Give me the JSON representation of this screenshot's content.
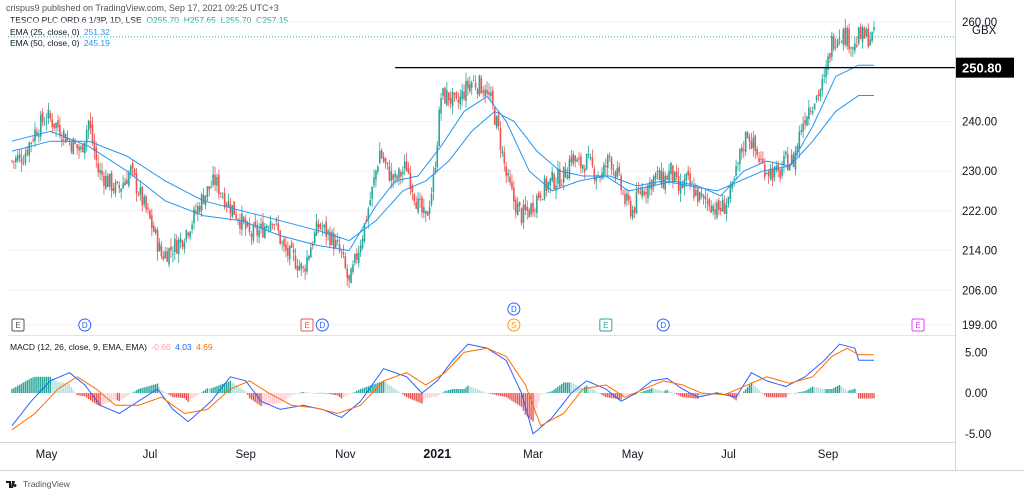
{
  "header": {
    "published": "crispus9 published on TradingView.com, Sep 17, 2021 09:25 UTC+3"
  },
  "legend": {
    "symbol": "TESCO PLC ORD 6 1/3P, 1D, LSE",
    "ohlc": {
      "O": "255.70",
      "H": "257.65",
      "L": "255.70",
      "C": "257.15"
    },
    "ema25": {
      "label": "EMA (25, close, 0)",
      "value": "251.32"
    },
    "ema50": {
      "label": "EMA (50, close, 0)",
      "value": "245.19"
    },
    "macd": {
      "label": "MACD (12, 26, close, 9, EMA, EMA)",
      "hist": "-0.66",
      "macd": "4.03",
      "signal": "4.69"
    }
  },
  "footer": {
    "brand": "TradingView"
  },
  "colors": {
    "up": "#26a69a",
    "down": "#ef5350",
    "ema": "#2196f3",
    "macd_line": "#2962ff",
    "signal_line": "#ff6d00",
    "hist_up": "#26a69a",
    "hist_down": "#ef5350",
    "grid": "#f0f3fa"
  },
  "chart_data": [
    {
      "type": "candlestick",
      "currency": "GBX",
      "price_axis_ticks": [
        "260.00",
        "240.00",
        "230.00",
        "222.00",
        "214.00",
        "206.00",
        "199.00"
      ],
      "current_price_label": "250.80",
      "horizontal_line_value": 250.8,
      "x_tick_labels": [
        "May",
        "Jul",
        "Sep",
        "Nov",
        "2021",
        "Mar",
        "May",
        "Jul",
        "Sep"
      ],
      "ylim": [
        197,
        262
      ],
      "event_markers": [
        {
          "type": "E",
          "label": "E"
        },
        {
          "type": "D",
          "label": "D"
        },
        {
          "type": "E",
          "label": "E"
        },
        {
          "type": "D",
          "label": "D"
        },
        {
          "type": "D",
          "label": "D"
        },
        {
          "type": "S",
          "label": "S"
        },
        {
          "type": "E",
          "label": "E"
        },
        {
          "type": "D",
          "label": "D"
        },
        {
          "type": "E",
          "label": "E"
        }
      ],
      "close_path": [
        [
          0,
          232
        ],
        [
          6,
          233
        ],
        [
          12,
          238
        ],
        [
          18,
          241
        ],
        [
          24,
          239
        ],
        [
          30,
          236
        ],
        [
          36,
          234
        ],
        [
          40,
          240
        ],
        [
          45,
          230
        ],
        [
          50,
          228
        ],
        [
          55,
          226
        ],
        [
          62,
          230
        ],
        [
          68,
          224
        ],
        [
          74,
          218
        ],
        [
          78,
          213
        ],
        [
          82,
          214
        ],
        [
          88,
          216
        ],
        [
          94,
          220
        ],
        [
          100,
          225
        ],
        [
          106,
          228
        ],
        [
          112,
          224
        ],
        [
          118,
          221
        ],
        [
          124,
          217
        ],
        [
          130,
          218
        ],
        [
          136,
          221
        ],
        [
          142,
          214
        ],
        [
          148,
          212
        ],
        [
          152,
          210
        ],
        [
          156,
          215
        ],
        [
          160,
          219
        ],
        [
          166,
          217
        ],
        [
          172,
          213
        ],
        [
          176,
          207
        ],
        [
          180,
          213
        ],
        [
          184,
          219
        ],
        [
          188,
          226
        ],
        [
          192,
          234
        ],
        [
          196,
          230
        ],
        [
          200,
          228
        ],
        [
          206,
          231
        ],
        [
          212,
          223
        ],
        [
          216,
          220
        ],
        [
          220,
          228
        ],
        [
          224,
          245
        ],
        [
          228,
          245
        ],
        [
          232,
          243
        ],
        [
          236,
          246
        ],
        [
          240,
          248
        ],
        [
          246,
          247
        ],
        [
          250,
          244
        ],
        [
          254,
          238
        ],
        [
          258,
          229
        ],
        [
          262,
          224
        ],
        [
          266,
          221
        ],
        [
          270,
          222
        ],
        [
          276,
          226
        ],
        [
          282,
          228
        ],
        [
          288,
          229
        ],
        [
          292,
          233
        ],
        [
          296,
          231
        ],
        [
          300,
          232
        ],
        [
          304,
          230
        ],
        [
          308,
          229
        ],
        [
          312,
          233
        ],
        [
          316,
          229
        ],
        [
          320,
          224
        ],
        [
          324,
          222
        ],
        [
          328,
          226
        ],
        [
          332,
          227
        ],
        [
          336,
          229
        ],
        [
          340,
          228
        ],
        [
          344,
          230
        ],
        [
          348,
          226
        ],
        [
          352,
          228
        ],
        [
          356,
          226
        ],
        [
          360,
          224
        ],
        [
          364,
          224
        ],
        [
          368,
          222
        ],
        [
          372,
          223
        ],
        [
          376,
          226
        ],
        [
          380,
          233
        ],
        [
          384,
          238
        ],
        [
          388,
          234
        ],
        [
          392,
          231
        ],
        [
          396,
          230
        ],
        [
          400,
          229
        ],
        [
          404,
          232
        ],
        [
          408,
          232
        ],
        [
          412,
          239
        ],
        [
          416,
          243
        ],
        [
          420,
          245
        ],
        [
          424,
          248
        ],
        [
          428,
          256
        ],
        [
          432,
          258
        ],
        [
          436,
          257
        ],
        [
          440,
          255
        ],
        [
          442,
          257
        ]
      ],
      "ema25_path": [
        [
          0,
          236
        ],
        [
          20,
          238
        ],
        [
          40,
          235
        ],
        [
          60,
          230
        ],
        [
          80,
          224
        ],
        [
          100,
          221
        ],
        [
          120,
          220
        ],
        [
          140,
          217
        ],
        [
          160,
          215
        ],
        [
          176,
          214
        ],
        [
          190,
          223
        ],
        [
          200,
          228
        ],
        [
          212,
          229
        ],
        [
          224,
          235
        ],
        [
          236,
          242
        ],
        [
          248,
          245
        ],
        [
          258,
          240
        ],
        [
          270,
          230
        ],
        [
          282,
          226
        ],
        [
          296,
          228
        ],
        [
          310,
          229
        ],
        [
          322,
          226
        ],
        [
          334,
          227
        ],
        [
          346,
          228
        ],
        [
          358,
          227
        ],
        [
          370,
          225
        ],
        [
          382,
          230
        ],
        [
          394,
          232
        ],
        [
          406,
          231
        ],
        [
          418,
          239
        ],
        [
          430,
          249
        ],
        [
          442,
          251.3
        ]
      ],
      "ema50_path": [
        [
          0,
          234
        ],
        [
          20,
          236
        ],
        [
          40,
          236
        ],
        [
          60,
          233
        ],
        [
          80,
          228
        ],
        [
          100,
          224
        ],
        [
          120,
          222
        ],
        [
          140,
          220
        ],
        [
          160,
          218
        ],
        [
          176,
          216
        ],
        [
          190,
          220
        ],
        [
          204,
          226
        ],
        [
          216,
          228
        ],
        [
          228,
          232
        ],
        [
          240,
          238
        ],
        [
          252,
          242
        ],
        [
          262,
          240
        ],
        [
          274,
          234
        ],
        [
          286,
          230
        ],
        [
          298,
          229
        ],
        [
          312,
          229
        ],
        [
          326,
          227
        ],
        [
          340,
          228
        ],
        [
          354,
          227
        ],
        [
          368,
          226
        ],
        [
          380,
          228
        ],
        [
          392,
          230
        ],
        [
          406,
          231
        ],
        [
          418,
          236
        ],
        [
          430,
          242
        ],
        [
          442,
          245.2
        ]
      ]
    },
    {
      "type": "macd",
      "y_axis_ticks": [
        "5.00",
        "0.00",
        "-5.00"
      ],
      "ylim": [
        -6,
        7
      ],
      "macd_path": [
        [
          0,
          -4
        ],
        [
          10,
          -1
        ],
        [
          20,
          1.5
        ],
        [
          30,
          2.5
        ],
        [
          38,
          1
        ],
        [
          46,
          -1.5
        ],
        [
          56,
          -2.5
        ],
        [
          66,
          -1
        ],
        [
          76,
          0.5
        ],
        [
          84,
          -2
        ],
        [
          92,
          -3.5
        ],
        [
          104,
          -1
        ],
        [
          114,
          2
        ],
        [
          122,
          1.5
        ],
        [
          130,
          -1
        ],
        [
          140,
          -2
        ],
        [
          152,
          -1.5
        ],
        [
          162,
          -2
        ],
        [
          172,
          -3
        ],
        [
          182,
          -1
        ],
        [
          194,
          3
        ],
        [
          206,
          2
        ],
        [
          214,
          0
        ],
        [
          222,
          1.5
        ],
        [
          230,
          4
        ],
        [
          238,
          6
        ],
        [
          248,
          5.5
        ],
        [
          258,
          4
        ],
        [
          266,
          0
        ],
        [
          272,
          -5
        ],
        [
          282,
          -3
        ],
        [
          292,
          0
        ],
        [
          300,
          1.5
        ],
        [
          310,
          0.5
        ],
        [
          318,
          -1
        ],
        [
          326,
          0
        ],
        [
          334,
          1.5
        ],
        [
          342,
          1.8
        ],
        [
          350,
          0.5
        ],
        [
          358,
          -0.5
        ],
        [
          368,
          0
        ],
        [
          378,
          -0.5
        ],
        [
          386,
          2.5
        ],
        [
          394,
          1.5
        ],
        [
          404,
          0.8
        ],
        [
          414,
          2
        ],
        [
          424,
          4
        ],
        [
          432,
          6
        ],
        [
          440,
          5.5
        ],
        [
          442,
          4.03
        ]
      ],
      "signal_path": [
        [
          0,
          -4.5
        ],
        [
          12,
          -2.5
        ],
        [
          24,
          0.5
        ],
        [
          34,
          2
        ],
        [
          44,
          0.5
        ],
        [
          54,
          -1.5
        ],
        [
          66,
          -1.5
        ],
        [
          78,
          -0.5
        ],
        [
          90,
          -2.5
        ],
        [
          102,
          -2
        ],
        [
          114,
          0.5
        ],
        [
          124,
          1.5
        ],
        [
          134,
          0
        ],
        [
          146,
          -1.5
        ],
        [
          158,
          -1.8
        ],
        [
          170,
          -2.5
        ],
        [
          182,
          -1.5
        ],
        [
          194,
          1.5
        ],
        [
          206,
          2.5
        ],
        [
          216,
          1
        ],
        [
          226,
          2.5
        ],
        [
          236,
          5
        ],
        [
          248,
          5.5
        ],
        [
          258,
          4.5
        ],
        [
          268,
          1
        ],
        [
          276,
          -4
        ],
        [
          288,
          -2.5
        ],
        [
          298,
          0.5
        ],
        [
          310,
          1
        ],
        [
          320,
          -0.5
        ],
        [
          330,
          0.5
        ],
        [
          340,
          1.5
        ],
        [
          350,
          1
        ],
        [
          360,
          0
        ],
        [
          372,
          -0.2
        ],
        [
          384,
          1
        ],
        [
          394,
          2
        ],
        [
          406,
          1.2
        ],
        [
          418,
          2
        ],
        [
          428,
          4.5
        ],
        [
          436,
          5.5
        ],
        [
          442,
          4.69
        ]
      ]
    }
  ]
}
